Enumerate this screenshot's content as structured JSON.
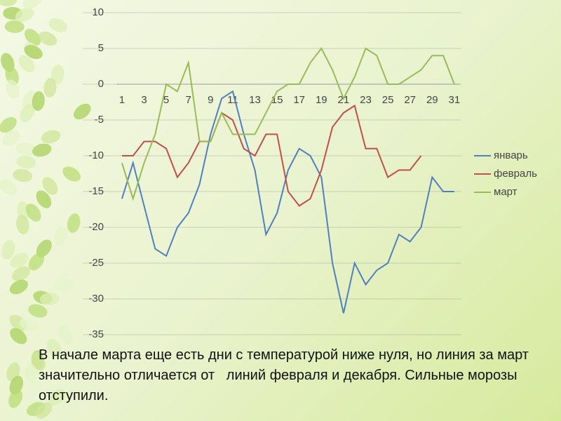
{
  "chart_data": {
    "type": "line",
    "categories": [
      1,
      null,
      3,
      null,
      5,
      null,
      7,
      null,
      9,
      null,
      11,
      null,
      13,
      null,
      15,
      null,
      17,
      null,
      19,
      null,
      21,
      null,
      23,
      null,
      25,
      null,
      27,
      null,
      29,
      null,
      31
    ],
    "series": [
      {
        "name": "январь",
        "color": "#4f81bd",
        "values": [
          -16,
          -11,
          -17,
          -23,
          -24,
          -20,
          -18,
          -14,
          -7,
          -2,
          -1,
          -7,
          -12,
          -21,
          -18,
          -12,
          -9,
          -10,
          -13,
          -25,
          -32,
          -25,
          -28,
          -26,
          -25,
          -21,
          -22,
          -20,
          -13,
          -15,
          -15
        ]
      },
      {
        "name": "февраль",
        "color": "#c0504d",
        "values": [
          -10,
          -10,
          -8,
          -8,
          -9,
          -13,
          -11,
          -8,
          -8,
          -4,
          -5,
          -9,
          -10,
          -7,
          -7,
          -15,
          -17,
          -16,
          -12,
          -6,
          -4,
          -3,
          -9,
          -9,
          -13,
          -12,
          -12,
          -10,
          null,
          null,
          null
        ]
      },
      {
        "name": "март",
        "color": "#9bbb59",
        "values": [
          -11,
          -16,
          -11,
          -7,
          0,
          -1,
          3,
          -8,
          -8,
          -4,
          -7,
          -7,
          -7,
          -4,
          -1,
          0,
          0,
          3,
          5,
          2,
          -2,
          1,
          5,
          4,
          0,
          0,
          1,
          2,
          4,
          4,
          0
        ]
      }
    ],
    "ylim": [
      -35,
      10
    ],
    "yticks": [
      10,
      5,
      0,
      -5,
      -10,
      -15,
      -20,
      -25,
      -30,
      -35
    ],
    "grid": true,
    "legend": "right"
  },
  "caption": "В начале марта еще есть дни с температурой ниже нуля, но линия за март значительно отличается от   линий февраля и декабря. Сильные морозы отступили."
}
